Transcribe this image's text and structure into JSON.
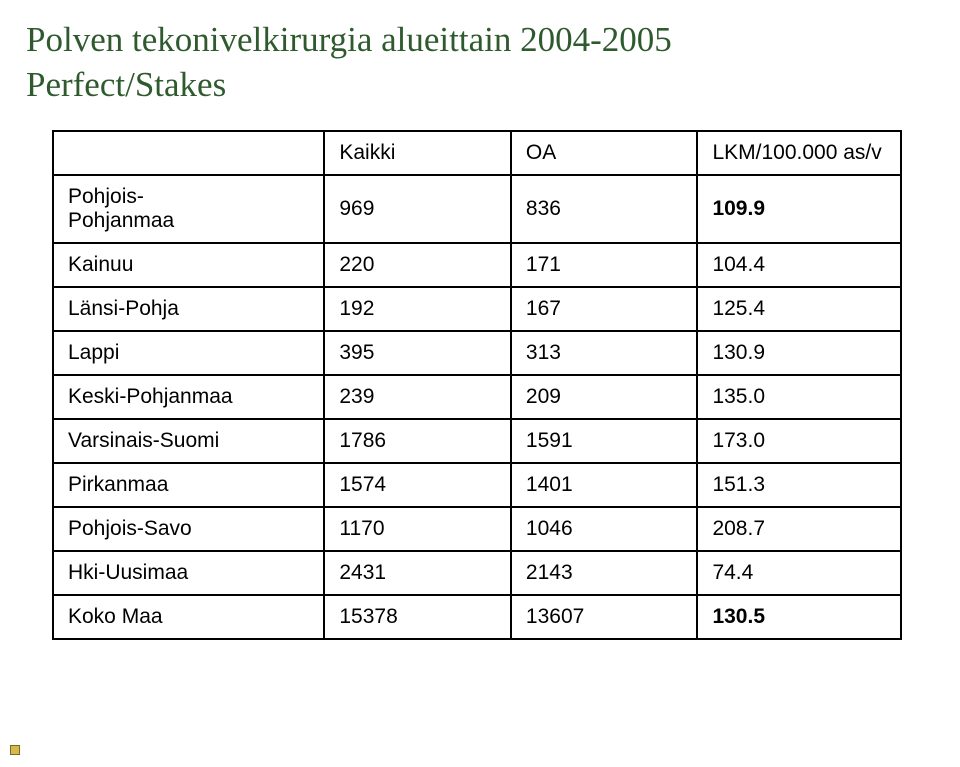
{
  "title": {
    "line1": "Polven tekonivelkirurgia alueittain 2004-2005",
    "line2": "Perfect/Stakes",
    "color": "#2e5a2e",
    "fontsize_pt": 26
  },
  "table": {
    "border_color": "#000000",
    "text_color": "#000000",
    "body_fontfamily": "Arial",
    "body_fontsize_pt": 16,
    "columns": [
      {
        "label": "",
        "width_pct": 32
      },
      {
        "label": "Kaikki",
        "width_pct": 22
      },
      {
        "label": "OA",
        "width_pct": 22
      },
      {
        "label": "LKM/100.000 as/v",
        "width_pct": 24
      }
    ],
    "rows": [
      {
        "region": "Pohjois-\nPohjanmaa",
        "kaikki": "969",
        "oa": "836",
        "rate": "109.9",
        "rate_bold": true,
        "region_multiline": true
      },
      {
        "region": "Kainuu",
        "kaikki": "220",
        "oa": "171",
        "rate": "104.4",
        "rate_bold": false
      },
      {
        "region": "Länsi-Pohja",
        "kaikki": "192",
        "oa": "167",
        "rate": "125.4",
        "rate_bold": false
      },
      {
        "region": "Lappi",
        "kaikki": "395",
        "oa": "313",
        "rate": "130.9",
        "rate_bold": false
      },
      {
        "region": "Keski-Pohjanmaa",
        "kaikki": "239",
        "oa": "209",
        "rate": "135.0",
        "rate_bold": false
      },
      {
        "region": "Varsinais-Suomi",
        "kaikki": "1786",
        "oa": "1591",
        "rate": "173.0",
        "rate_bold": false
      },
      {
        "region": "Pirkanmaa",
        "kaikki": "1574",
        "oa": "1401",
        "rate": "151.3",
        "rate_bold": false
      },
      {
        "region": "Pohjois-Savo",
        "kaikki": "1170",
        "oa": "1046",
        "rate": "208.7",
        "rate_bold": false
      },
      {
        "region": "Hki-Uusimaa",
        "kaikki": "2431",
        "oa": "2143",
        "rate": "74.4",
        "rate_bold": false
      },
      {
        "region": "Koko Maa",
        "kaikki": "15378",
        "oa": "13607",
        "rate": "130.5",
        "rate_bold": true
      }
    ]
  },
  "corner_mark": {
    "color": "#d9b84a",
    "border": "#7a6a2a"
  }
}
